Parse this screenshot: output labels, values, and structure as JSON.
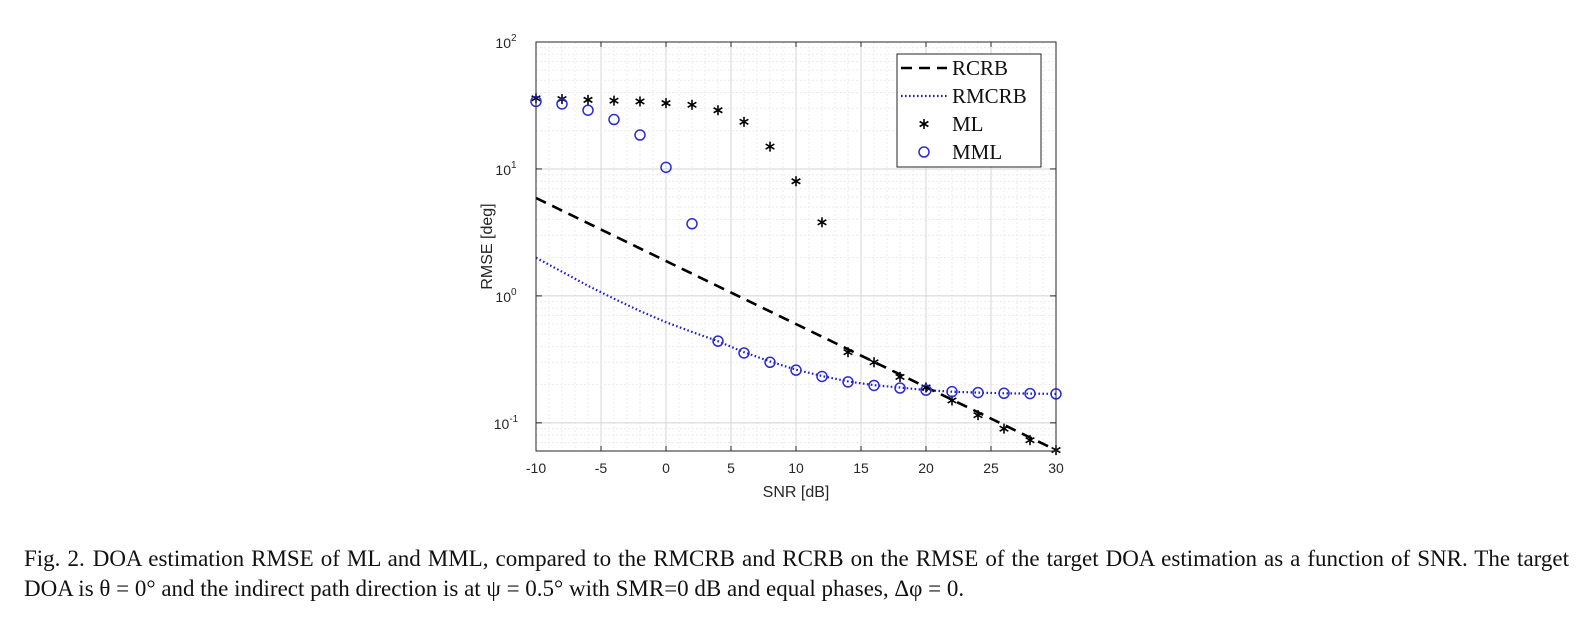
{
  "chart_data": {
    "type": "line",
    "title": "",
    "xlabel": "SNR [dB]",
    "ylabel": "RMSE [deg]",
    "xscale": "linear",
    "yscale": "log",
    "xlim": [
      -10,
      30
    ],
    "ylim": [
      0.06,
      100
    ],
    "xticks": [
      -10,
      -5,
      0,
      5,
      10,
      15,
      20,
      25,
      30
    ],
    "xtick_labels": [
      "-10",
      "-5",
      "0",
      "5",
      "10",
      "15",
      "20",
      "25",
      "30"
    ],
    "yticks": [
      0.1,
      1,
      10,
      100
    ],
    "ytick_labels": [
      {
        "base": "10",
        "exp": "-1"
      },
      {
        "base": "10",
        "exp": "0"
      },
      {
        "base": "10",
        "exp": "1"
      },
      {
        "base": "10",
        "exp": "2"
      }
    ],
    "grid": true,
    "legend_position": "top-right",
    "series": [
      {
        "name": "RCRB",
        "style": "dashed",
        "color": "#000000",
        "x": [
          -10,
          30
        ],
        "y": [
          5.9,
          0.061
        ]
      },
      {
        "name": "RMCRB",
        "style": "dotted",
        "color": "#1f1fcc",
        "x": [
          -10,
          -8,
          -6,
          -4,
          -2,
          0,
          2,
          4,
          6,
          8,
          10,
          12,
          14,
          16,
          18,
          20,
          22,
          24,
          26,
          28,
          30
        ],
        "y": [
          2.0,
          1.55,
          1.2,
          0.95,
          0.76,
          0.62,
          0.52,
          0.44,
          0.36,
          0.305,
          0.262,
          0.234,
          0.212,
          0.198,
          0.19,
          0.181,
          0.176,
          0.173,
          0.171,
          0.17,
          0.169
        ]
      },
      {
        "name": "ML",
        "style": "marker-star",
        "color": "#000000",
        "x": [
          -10,
          -8,
          -6,
          -4,
          -2,
          0,
          2,
          4,
          6,
          8,
          10,
          12,
          14,
          16,
          18,
          20,
          22,
          24,
          26,
          28,
          30
        ],
        "y": [
          36,
          35.5,
          35,
          34.5,
          34,
          33,
          32,
          29,
          23.5,
          15,
          8,
          3.8,
          0.36,
          0.3,
          0.23,
          0.19,
          0.15,
          0.115,
          0.09,
          0.073,
          0.061
        ]
      },
      {
        "name": "MML",
        "style": "marker-circle",
        "color": "#2b2bd6",
        "x": [
          -10,
          -8,
          -6,
          -4,
          -2,
          0,
          2,
          4,
          6,
          8,
          10,
          12,
          14,
          16,
          18,
          20,
          22,
          24,
          26,
          28,
          30
        ],
        "y": [
          34,
          32.5,
          29,
          24.5,
          18.5,
          10.3,
          3.7,
          0.44,
          0.355,
          0.3,
          0.26,
          0.232,
          0.21,
          0.197,
          0.188,
          0.181,
          0.176,
          0.173,
          0.171,
          0.17,
          0.169
        ]
      }
    ]
  },
  "caption": {
    "label": "Fig. 2.",
    "text": "DOA estimation RMSE of ML and MML, compared to the RMCRB and RCRB on the RMSE of the target DOA estimation as a function of SNR. The target DOA is θ = 0° and the indirect path direction is at ψ = 0.5° with SMR=0 dB and equal phases, Δφ = 0."
  }
}
